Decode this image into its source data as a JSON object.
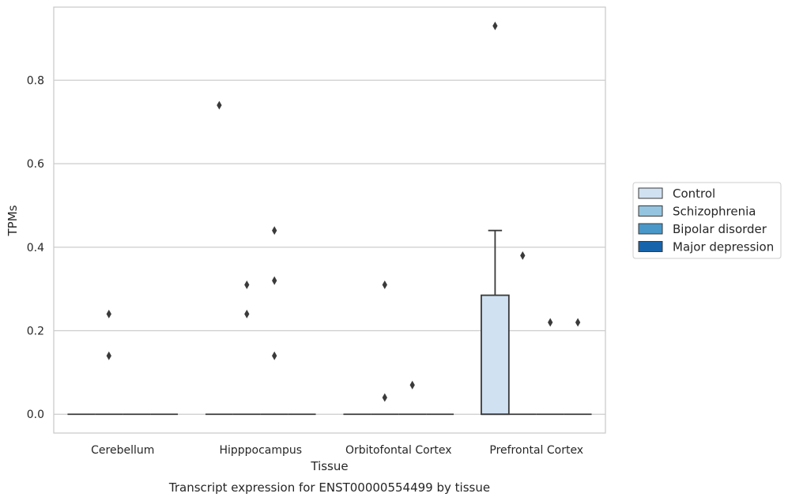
{
  "chart_data": {
    "type": "box",
    "caption": "Transcript expression for ENST00000554499 by tissue",
    "xlabel": "Tissue",
    "ylabel": "TPMs",
    "ylim": [
      -0.045,
      0.975
    ],
    "yticks": [
      0.0,
      0.2,
      0.4,
      0.6,
      0.8
    ],
    "ytick_labels": [
      "0.0",
      "0.2",
      "0.4",
      "0.6",
      "0.8"
    ],
    "grid": "horizontal",
    "legend_position": "right",
    "categories": [
      "Cerebellum",
      "Hipppocampus",
      "Orbitofontal Cortex",
      "Prefrontal Cortex"
    ],
    "series": [
      {
        "name": "Control",
        "color": "#d0e1f2",
        "boxes": [
          {
            "q1": 0,
            "median": 0,
            "q3": 0,
            "whisker_low": 0,
            "whisker_high": 0,
            "outliers": []
          },
          {
            "q1": 0,
            "median": 0,
            "q3": 0,
            "whisker_low": 0,
            "whisker_high": 0,
            "outliers": [
              0.74
            ]
          },
          {
            "q1": 0,
            "median": 0,
            "q3": 0,
            "whisker_low": 0,
            "whisker_high": 0,
            "outliers": []
          },
          {
            "q1": 0,
            "median": 0,
            "q3": 0.285,
            "whisker_low": 0,
            "whisker_high": 0.44,
            "outliers": [
              0.93
            ]
          }
        ]
      },
      {
        "name": "Schizophrenia",
        "color": "#94c4df",
        "boxes": [
          {
            "q1": 0,
            "median": 0,
            "q3": 0,
            "whisker_low": 0,
            "whisker_high": 0,
            "outliers": [
              0.24,
              0.14
            ]
          },
          {
            "q1": 0,
            "median": 0,
            "q3": 0,
            "whisker_low": 0,
            "whisker_high": 0,
            "outliers": [
              0.31,
              0.24
            ]
          },
          {
            "q1": 0,
            "median": 0,
            "q3": 0,
            "whisker_low": 0,
            "whisker_high": 0,
            "outliers": [
              0.31,
              0.04
            ]
          },
          {
            "q1": 0,
            "median": 0,
            "q3": 0,
            "whisker_low": 0,
            "whisker_high": 0,
            "outliers": [
              0.38
            ]
          }
        ]
      },
      {
        "name": "Bipolar disorder",
        "color": "#4a98c9",
        "boxes": [
          {
            "q1": 0,
            "median": 0,
            "q3": 0,
            "whisker_low": 0,
            "whisker_high": 0,
            "outliers": []
          },
          {
            "q1": 0,
            "median": 0,
            "q3": 0,
            "whisker_low": 0,
            "whisker_high": 0,
            "outliers": [
              0.44,
              0.32,
              0.14
            ]
          },
          {
            "q1": 0,
            "median": 0,
            "q3": 0,
            "whisker_low": 0,
            "whisker_high": 0,
            "outliers": [
              0.07
            ]
          },
          {
            "q1": 0,
            "median": 0,
            "q3": 0,
            "whisker_low": 0,
            "whisker_high": 0,
            "outliers": [
              0.22
            ]
          }
        ]
      },
      {
        "name": "Major depression",
        "color": "#1764ab",
        "boxes": [
          {
            "q1": 0,
            "median": 0,
            "q3": 0,
            "whisker_low": 0,
            "whisker_high": 0,
            "outliers": []
          },
          {
            "q1": 0,
            "median": 0,
            "q3": 0,
            "whisker_low": 0,
            "whisker_high": 0,
            "outliers": []
          },
          {
            "q1": 0,
            "median": 0,
            "q3": 0,
            "whisker_low": 0,
            "whisker_high": 0,
            "outliers": []
          },
          {
            "q1": 0,
            "median": 0,
            "q3": 0,
            "whisker_low": 0,
            "whisker_high": 0,
            "outliers": [
              0.22
            ]
          }
        ]
      }
    ]
  }
}
